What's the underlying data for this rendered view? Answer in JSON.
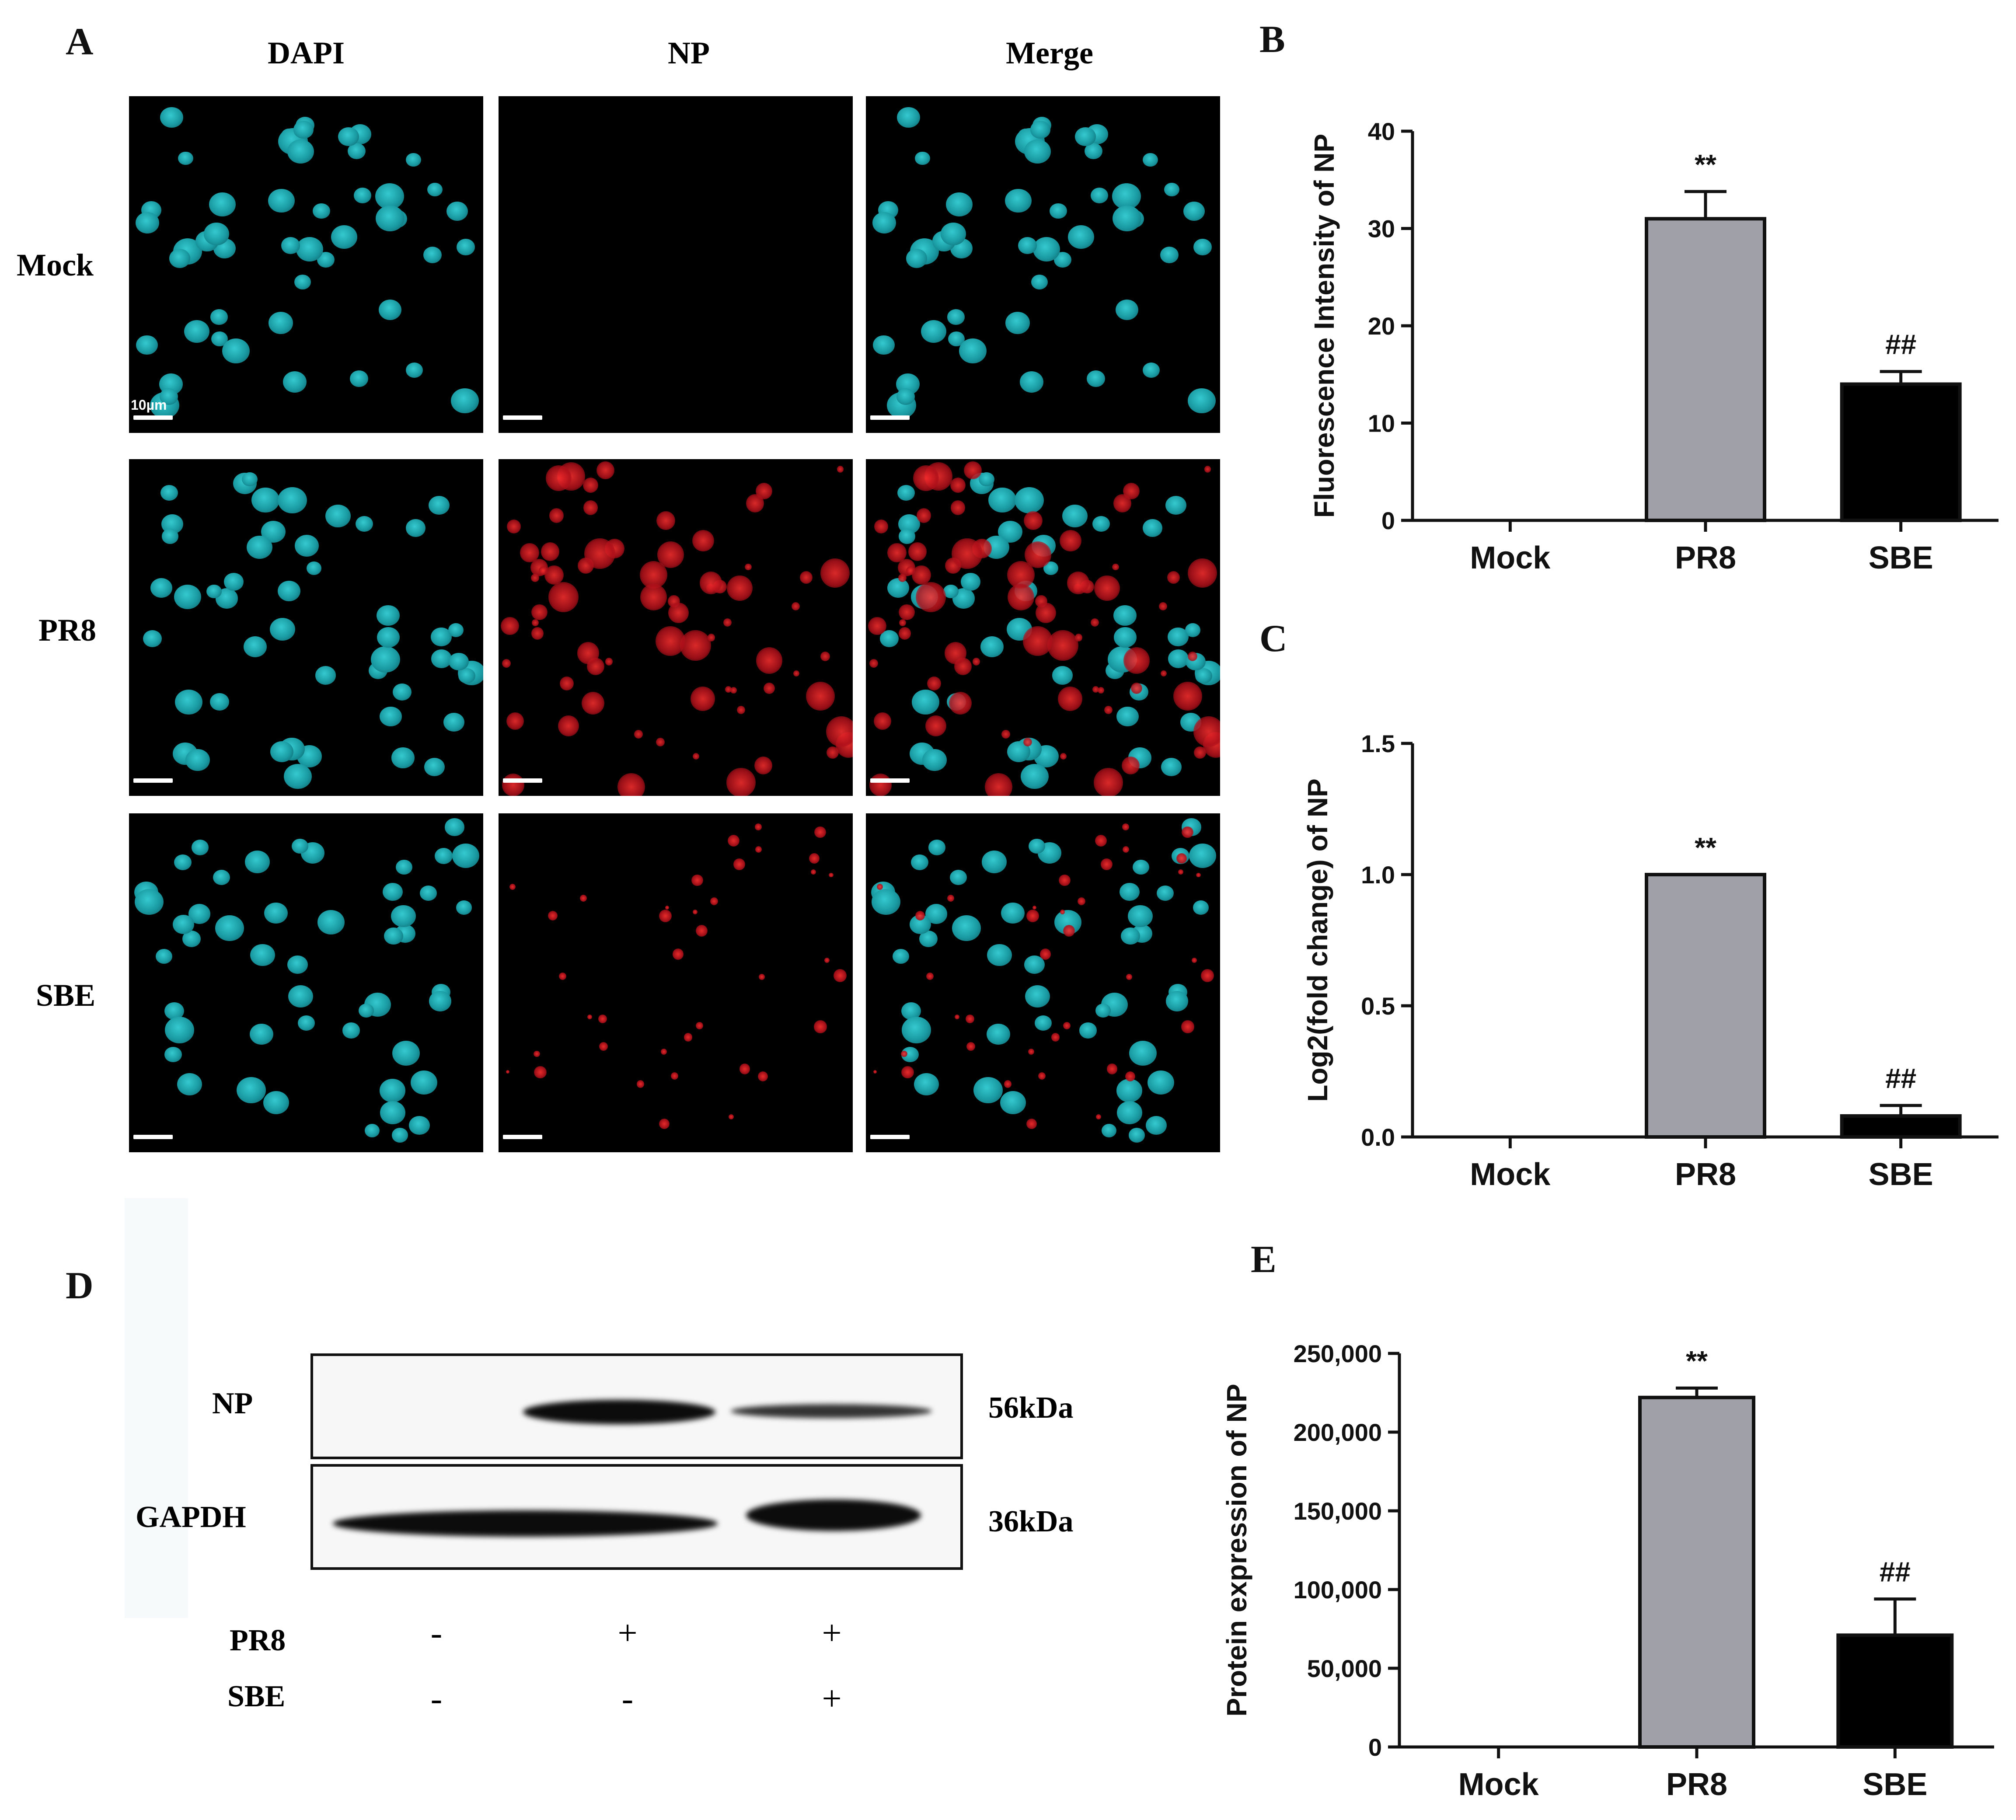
{
  "panels": {
    "A": {
      "letter": "A",
      "columns": [
        "DAPI",
        "NP",
        "Merge"
      ],
      "rows": [
        "Mock",
        "PR8",
        "SBE"
      ],
      "scale_label": "10µm"
    },
    "B": {
      "letter": "B"
    },
    "C": {
      "letter": "C"
    },
    "D": {
      "letter": "D",
      "bands": [
        {
          "label": "NP",
          "size": "56kDa"
        },
        {
          "label": "GAPDH",
          "size": "36kDa"
        }
      ],
      "conditions": [
        {
          "label": "PR8",
          "signs": [
            "-",
            "+",
            "+"
          ]
        },
        {
          "label": "SBE",
          "signs": [
            "-",
            "-",
            "+"
          ]
        }
      ]
    },
    "E": {
      "letter": "E"
    }
  },
  "colors": {
    "pr8_bar": "#a0a0a8",
    "sbe_bar": "#000000",
    "dapi": "#22b7bf",
    "np": "#e0141e"
  },
  "chart_data": [
    {
      "panel": "B",
      "type": "bar",
      "categories": [
        "Mock",
        "PR8",
        "SBE"
      ],
      "values": [
        0,
        31,
        14
      ],
      "errors": [
        0,
        2.8,
        1.3
      ],
      "annotations": [
        "",
        "**",
        "##"
      ],
      "ylabel": "Fluorescence Intensity of NP",
      "ylim": [
        0,
        40
      ],
      "yticks": [
        0,
        10,
        20,
        30,
        40
      ],
      "ytick_labels": [
        "0",
        "10",
        "20",
        "30",
        "40"
      ]
    },
    {
      "panel": "C",
      "type": "bar",
      "categories": [
        "Mock",
        "PR8",
        "SBE"
      ],
      "values": [
        0,
        1.0,
        0.08
      ],
      "errors": [
        0,
        0,
        0.04
      ],
      "annotations": [
        "",
        "**",
        "##"
      ],
      "ylabel": "Log2(fold change) of NP",
      "ylim": [
        0,
        1.5
      ],
      "yticks": [
        0,
        0.5,
        1.0,
        1.5
      ],
      "ytick_labels": [
        "0.0",
        "0.5",
        "1.0",
        "1.5"
      ]
    },
    {
      "panel": "E",
      "type": "bar",
      "categories": [
        "Mock",
        "PR8",
        "SBE"
      ],
      "values": [
        0,
        222000,
        71000
      ],
      "errors": [
        0,
        6000,
        23000
      ],
      "annotations": [
        "",
        "**",
        "##"
      ],
      "ylabel": "Protein expression of NP",
      "ylim": [
        0,
        250000
      ],
      "yticks": [
        0,
        50000,
        100000,
        150000,
        200000,
        250000
      ],
      "ytick_labels": [
        "0",
        "50,000",
        "100,000",
        "150,000",
        "200,000",
        "250,000"
      ]
    }
  ]
}
